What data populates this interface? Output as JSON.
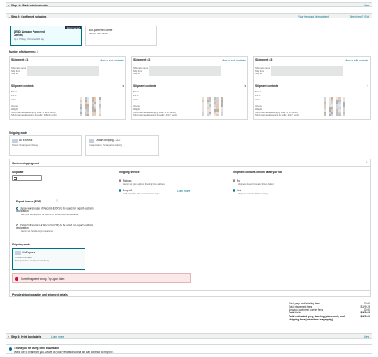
{
  "step1": {
    "title": "Step 1b - Pack individual units",
    "action": "View"
  },
  "step2": {
    "title": "Step 2: Confirmed shipping",
    "feedback": "Your feedback is important",
    "help": "Need help?",
    "edit": "Edit"
  },
  "options": {
    "partnered": {
      "title": "SEND (Amazon Partnered Carrier)",
      "sub": "Up to 75 days, Partnered 4th day",
      "badge": "Recommended"
    },
    "nonpartnered": {
      "title": "Non-partnered carrier",
      "sub": "Use your own carrier"
    }
  },
  "shipments_count_label": "Number of shipments: 3",
  "shipments": [
    {
      "title": "Shipment #1",
      "link": "View or edit contents",
      "name_label": "Shipment name",
      "ship_from": "Ship from",
      "ship_to": "Ship to",
      "contents": "Shipment contents",
      "rows": [
        "Boxes",
        "SKUs",
        "Units"
      ],
      "volume": "Volume",
      "weight": "Weight",
      "fee1": "SKUs that need labeling by seller: 4 ($156 units)",
      "fee2": "SKUs that need prepping by seller: 4 ($156 units)"
    },
    {
      "title": "Shipment #2",
      "link": "View or edit contents",
      "name_label": "Shipment name",
      "ship_from": "Ship from",
      "ship_to": "Ship to",
      "contents": "Shipment contents",
      "rows": [
        "Boxes",
        "SKUs",
        "Units"
      ],
      "volume": "Volume",
      "weight": "Weight",
      "fee1": "SKUs that need labeling by seller: 4 (173 units)",
      "fee2": "SKUs that need prepping by seller: 4 (173 units)"
    },
    {
      "title": "Shipment #3",
      "link": "View or edit contents",
      "name_label": "Shipment name",
      "ship_from": "Ship from",
      "ship_to": "Ship to",
      "contents": "Shipment contents",
      "rows": [
        "Boxes",
        "SKUs",
        "Units"
      ],
      "volume": "Volume",
      "weight": "Weight",
      "fee1": "SKUs that need labeling by seller: 4 (175 units)",
      "fee2": "SKUs that need prepping by seller: 4 (175 units)"
    }
  ],
  "shipping_mode": {
    "label": "Shipping mode",
    "air": {
      "title": "Air Express",
      "sub": "Transit: Small parcel delivery"
    },
    "ocean": {
      "title": "Ocean Shipping - LCL",
      "sub": "Transportation: Small parcel delivery"
    }
  },
  "confirm": {
    "title": "Confirm shipping cost",
    "ship_date_label": "Ship date",
    "ship_date_value": "",
    "service_label": "Shipping service",
    "service_pickup": "Pick up",
    "service_pickup_sub": "Carrier will pick up from the ship from address",
    "service_dropoff": "Drop off",
    "service_dropoff_sub": "I will drop off at the nearest carrier depot",
    "learn_more": "Learn more",
    "battery_label": "Shipment contains lithium battery or not",
    "battery_no": "No",
    "battery_no_sub": "Shipment doesn't contain lithium battery",
    "battery_yes": "Yes",
    "battery_yes_sub": "Shipment contains lithium battery",
    "export_label": "Export licence (EOR)",
    "export_opt1": "Japan warehouse of Record (EOR) to be used for export customs declaration",
    "export_opt1_sub": "Use your own Exporter of Record for export customs clearance",
    "export_opt2": "Carrier's Exporter of Record (EOR) to be used for export customs declaration",
    "export_opt2_sub": "Carrier will handle export clearance",
    "mode_label": "Shipping mode",
    "mode_title": "Air Express",
    "mode_sub1": "Transit: 5-10 days",
    "mode_sub2": "Transportation: Small parcel delivery",
    "error": "Something went wrong. Try again later."
  },
  "provide": {
    "title": "Provide shipping parties and shipment details"
  },
  "totals": [
    {
      "label": "Total prep and labeling fees",
      "value": "$0.00"
    },
    {
      "label": "Total placement fees",
      "value": "$129.29"
    },
    {
      "label": "Amazon partnered carrier fees",
      "value": "$0.00"
    },
    {
      "label": "Total fees",
      "value": "$129.29"
    },
    {
      "label": "Total estimated prep, labeling, placement, and shipping fees (other fees may apply)",
      "value": "$129.29"
    }
  ],
  "step3": {
    "title": "Step 3: Print box labels",
    "learn": "Learn more",
    "action": "View"
  },
  "thanks": {
    "title": "Thank you for using Send to Amazon",
    "body": "We'd like to hear from you. Leave us your Feedback so that we can continue to improve."
  },
  "colors": {
    "accent": "#007185",
    "error_bg": "#fce8e8",
    "error_icon": "#cc0c39"
  }
}
